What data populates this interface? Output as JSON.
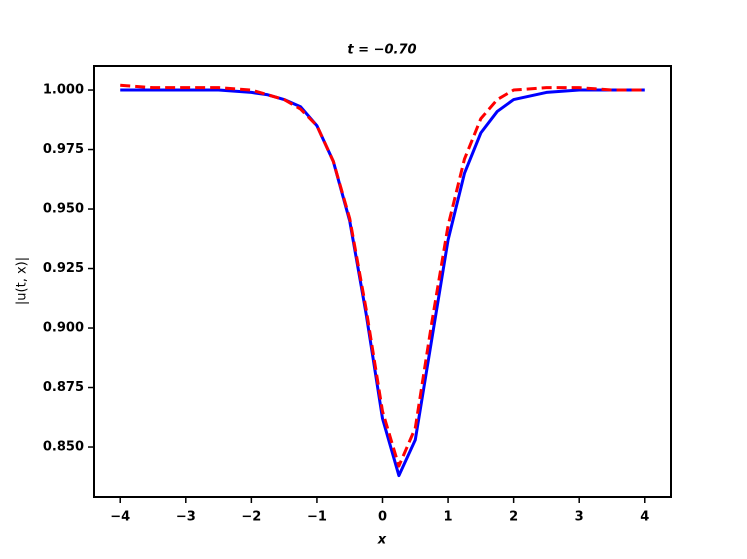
{
  "chart_data": {
    "type": "line",
    "title": "t = −0.70",
    "x_label": "x",
    "y_label": "|u(t, x)|",
    "x": [
      -4,
      -3.5,
      -3,
      -2.5,
      -2,
      -1.75,
      -1.5,
      -1.25,
      -1,
      -0.75,
      -0.5,
      -0.25,
      0,
      0.25,
      0.5,
      0.75,
      1,
      1.25,
      1.5,
      1.75,
      2,
      2.5,
      3,
      3.5,
      4
    ],
    "series": [
      {
        "color": "#0000ff",
        "dash": false,
        "values": [
          1,
          1,
          1,
          1,
          0.999,
          0.998,
          0.996,
          0.993,
          0.985,
          0.97,
          0.945,
          0.906,
          0.862,
          0.838,
          0.853,
          0.895,
          0.937,
          0.965,
          0.982,
          0.991,
          0.996,
          0.999,
          1,
          1,
          1
        ]
      },
      {
        "color": "#ff0000",
        "dash": true,
        "values": [
          1.002,
          1.001,
          1.001,
          1.001,
          1.0,
          0.998,
          0.996,
          0.992,
          0.985,
          0.97,
          0.946,
          0.908,
          0.865,
          0.842,
          0.858,
          0.902,
          0.943,
          0.971,
          0.988,
          0.996,
          1.0,
          1.001,
          1.001,
          1.0,
          1.0
        ]
      }
    ],
    "xlim": [
      -4.4,
      4.4
    ],
    "ylim": [
      0.829,
      1.0101
    ],
    "xticks": [
      {
        "value": -4,
        "label": "−4"
      },
      {
        "value": -3,
        "label": "−3"
      },
      {
        "value": -2,
        "label": "−2"
      },
      {
        "value": -1,
        "label": "−1"
      },
      0,
      1,
      2,
      3,
      4
    ],
    "yticks": [
      {
        "value": 0.85,
        "label": "0.850"
      },
      {
        "value": 0.875,
        "label": "0.875"
      },
      {
        "value": 0.9,
        "label": "0.900"
      },
      {
        "value": 0.925,
        "label": "0.925"
      },
      {
        "value": 0.95,
        "label": "0.950"
      },
      {
        "value": 0.975,
        "label": "0.975"
      },
      {
        "value": 1,
        "label": "1.000"
      }
    ],
    "grid": false
  }
}
